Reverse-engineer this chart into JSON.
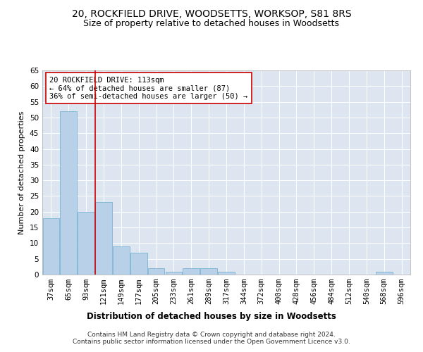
{
  "title1": "20, ROCKFIELD DRIVE, WOODSETTS, WORKSOP, S81 8RS",
  "title2": "Size of property relative to detached houses in Woodsetts",
  "xlabel": "Distribution of detached houses by size in Woodsetts",
  "ylabel": "Number of detached properties",
  "bin_labels": [
    "37sqm",
    "65sqm",
    "93sqm",
    "121sqm",
    "149sqm",
    "177sqm",
    "205sqm",
    "233sqm",
    "261sqm",
    "289sqm",
    "317sqm",
    "344sqm",
    "372sqm",
    "400sqm",
    "428sqm",
    "456sqm",
    "484sqm",
    "512sqm",
    "540sqm",
    "568sqm",
    "596sqm"
  ],
  "bar_values": [
    18,
    52,
    20,
    23,
    9,
    7,
    2,
    1,
    2,
    2,
    1,
    0,
    0,
    0,
    0,
    0,
    0,
    0,
    0,
    1,
    0
  ],
  "bar_color": "#b8d0e8",
  "bar_edge_color": "#6aacd0",
  "vline_color": "#cc0000",
  "vline_x": 2.5,
  "annotation_text": "20 ROCKFIELD DRIVE: 113sqm\n← 64% of detached houses are smaller (87)\n36% of semi-detached houses are larger (50) →",
  "annotation_box_color": "#ffffff",
  "annotation_box_edge": "#cc0000",
  "ylim": [
    0,
    65
  ],
  "yticks": [
    0,
    5,
    10,
    15,
    20,
    25,
    30,
    35,
    40,
    45,
    50,
    55,
    60,
    65
  ],
  "background_color": "#dde6f0",
  "footer_text": "Contains HM Land Registry data © Crown copyright and database right 2024.\nContains public sector information licensed under the Open Government Licence v3.0.",
  "title1_fontsize": 10,
  "title2_fontsize": 9,
  "xlabel_fontsize": 8.5,
  "ylabel_fontsize": 8,
  "tick_fontsize": 7.5,
  "annotation_fontsize": 7.5,
  "footer_fontsize": 6.5
}
